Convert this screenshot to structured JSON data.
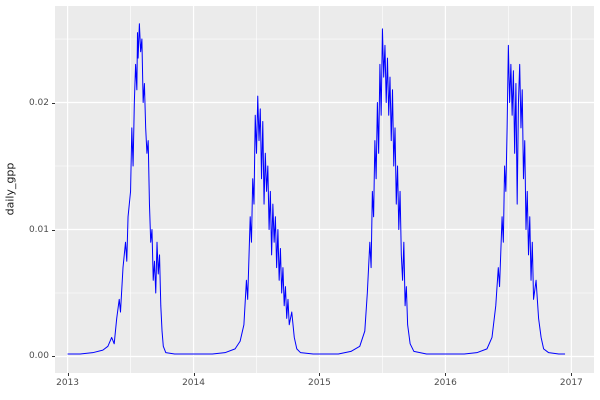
{
  "chart_data": {
    "type": "line",
    "title": "",
    "xlabel": "",
    "ylabel": "daily_gpp",
    "legend": "none",
    "panel_bg": "#EBEBEB",
    "grid": "white major and minor gridlines on gray panel (ggplot2 theme_grey)",
    "line_color": "#0000FF",
    "xlim": [
      2012.9,
      2017.18
    ],
    "ylim": [
      -0.0013,
      0.0276
    ],
    "x_ticks": [
      2013,
      2014,
      2015,
      2016,
      2017
    ],
    "x_tick_labels": [
      "2013",
      "2014",
      "2015",
      "2016",
      "2017"
    ],
    "x_minor_ticks": [
      2013.5,
      2014.5,
      2015.5,
      2016.5,
      2017
    ],
    "y_ticks": [
      0.0,
      0.01,
      0.02
    ],
    "y_tick_labels": [
      "0.00",
      "0.01",
      "0.02"
    ],
    "y_minor_ticks": [
      0.005,
      0.015,
      0.025
    ],
    "series": [
      {
        "name": "daily_gpp",
        "points": [
          [
            2013.0,
            0.0002
          ],
          [
            2013.1,
            0.0002
          ],
          [
            2013.2,
            0.0003
          ],
          [
            2013.28,
            0.0005
          ],
          [
            2013.32,
            0.0008
          ],
          [
            2013.35,
            0.0015
          ],
          [
            2013.37,
            0.001
          ],
          [
            2013.39,
            0.003
          ],
          [
            2013.41,
            0.0045
          ],
          [
            2013.42,
            0.0035
          ],
          [
            2013.44,
            0.007
          ],
          [
            2013.46,
            0.009
          ],
          [
            2013.47,
            0.0075
          ],
          [
            2013.48,
            0.011
          ],
          [
            2013.5,
            0.013
          ],
          [
            2013.51,
            0.018
          ],
          [
            2013.52,
            0.015
          ],
          [
            2013.53,
            0.02
          ],
          [
            2013.54,
            0.023
          ],
          [
            2013.55,
            0.021
          ],
          [
            2013.555,
            0.0255
          ],
          [
            2013.56,
            0.0235
          ],
          [
            2013.57,
            0.0262
          ],
          [
            2013.58,
            0.024
          ],
          [
            2013.59,
            0.025
          ],
          [
            2013.6,
            0.02
          ],
          [
            2013.61,
            0.0215
          ],
          [
            2013.62,
            0.018
          ],
          [
            2013.63,
            0.016
          ],
          [
            2013.64,
            0.017
          ],
          [
            2013.65,
            0.012
          ],
          [
            2013.66,
            0.009
          ],
          [
            2013.67,
            0.01
          ],
          [
            2013.68,
            0.006
          ],
          [
            2013.69,
            0.0075
          ],
          [
            2013.7,
            0.005
          ],
          [
            2013.71,
            0.009
          ],
          [
            2013.72,
            0.0065
          ],
          [
            2013.73,
            0.008
          ],
          [
            2013.74,
            0.004
          ],
          [
            2013.75,
            0.002
          ],
          [
            2013.76,
            0.0008
          ],
          [
            2013.78,
            0.0003
          ],
          [
            2013.85,
            0.0002
          ],
          [
            2013.95,
            0.0002
          ],
          [
            2014.05,
            0.0002
          ],
          [
            2014.15,
            0.0002
          ],
          [
            2014.25,
            0.0003
          ],
          [
            2014.33,
            0.0006
          ],
          [
            2014.37,
            0.0012
          ],
          [
            2014.4,
            0.0025
          ],
          [
            2014.42,
            0.006
          ],
          [
            2014.43,
            0.0045
          ],
          [
            2014.45,
            0.011
          ],
          [
            2014.46,
            0.009
          ],
          [
            2014.47,
            0.014
          ],
          [
            2014.48,
            0.012
          ],
          [
            2014.49,
            0.019
          ],
          [
            2014.5,
            0.016
          ],
          [
            2014.51,
            0.0205
          ],
          [
            2014.52,
            0.017
          ],
          [
            2014.53,
            0.0195
          ],
          [
            2014.54,
            0.014
          ],
          [
            2014.55,
            0.0185
          ],
          [
            2014.56,
            0.012
          ],
          [
            2014.57,
            0.016
          ],
          [
            2014.58,
            0.013
          ],
          [
            2014.59,
            0.015
          ],
          [
            2014.6,
            0.01
          ],
          [
            2014.61,
            0.013
          ],
          [
            2014.62,
            0.008
          ],
          [
            2014.63,
            0.012
          ],
          [
            2014.64,
            0.009
          ],
          [
            2014.65,
            0.011
          ],
          [
            2014.66,
            0.007
          ],
          [
            2014.67,
            0.01
          ],
          [
            2014.68,
            0.006
          ],
          [
            2014.69,
            0.0085
          ],
          [
            2014.7,
            0.005
          ],
          [
            2014.71,
            0.007
          ],
          [
            2014.72,
            0.004
          ],
          [
            2014.73,
            0.0055
          ],
          [
            2014.74,
            0.003
          ],
          [
            2014.75,
            0.0045
          ],
          [
            2014.76,
            0.0025
          ],
          [
            2014.78,
            0.0035
          ],
          [
            2014.8,
            0.0015
          ],
          [
            2014.82,
            0.0006
          ],
          [
            2014.85,
            0.0003
          ],
          [
            2014.95,
            0.0002
          ],
          [
            2015.05,
            0.0002
          ],
          [
            2015.15,
            0.0002
          ],
          [
            2015.25,
            0.0004
          ],
          [
            2015.32,
            0.0008
          ],
          [
            2015.36,
            0.002
          ],
          [
            2015.38,
            0.005
          ],
          [
            2015.4,
            0.009
          ],
          [
            2015.41,
            0.007
          ],
          [
            2015.42,
            0.013
          ],
          [
            2015.43,
            0.011
          ],
          [
            2015.44,
            0.017
          ],
          [
            2015.45,
            0.014
          ],
          [
            2015.46,
            0.02
          ],
          [
            2015.47,
            0.016
          ],
          [
            2015.48,
            0.023
          ],
          [
            2015.49,
            0.019
          ],
          [
            2015.5,
            0.0258
          ],
          [
            2015.51,
            0.022
          ],
          [
            2015.52,
            0.0245
          ],
          [
            2015.53,
            0.02
          ],
          [
            2015.54,
            0.0235
          ],
          [
            2015.55,
            0.019
          ],
          [
            2015.56,
            0.022
          ],
          [
            2015.57,
            0.017
          ],
          [
            2015.58,
            0.021
          ],
          [
            2015.59,
            0.015
          ],
          [
            2015.6,
            0.018
          ],
          [
            2015.61,
            0.012
          ],
          [
            2015.62,
            0.015
          ],
          [
            2015.63,
            0.01
          ],
          [
            2015.64,
            0.013
          ],
          [
            2015.65,
            0.008
          ],
          [
            2015.66,
            0.006
          ],
          [
            2015.67,
            0.009
          ],
          [
            2015.68,
            0.004
          ],
          [
            2015.69,
            0.0055
          ],
          [
            2015.7,
            0.0025
          ],
          [
            2015.72,
            0.001
          ],
          [
            2015.75,
            0.0004
          ],
          [
            2015.85,
            0.0002
          ],
          [
            2015.95,
            0.0002
          ],
          [
            2016.05,
            0.0002
          ],
          [
            2016.15,
            0.0002
          ],
          [
            2016.25,
            0.0003
          ],
          [
            2016.33,
            0.0006
          ],
          [
            2016.37,
            0.0015
          ],
          [
            2016.4,
            0.004
          ],
          [
            2016.42,
            0.007
          ],
          [
            2016.43,
            0.0055
          ],
          [
            2016.45,
            0.011
          ],
          [
            2016.46,
            0.009
          ],
          [
            2016.47,
            0.015
          ],
          [
            2016.48,
            0.013
          ],
          [
            2016.49,
            0.018
          ],
          [
            2016.5,
            0.0245
          ],
          [
            2016.51,
            0.02
          ],
          [
            2016.52,
            0.023
          ],
          [
            2016.53,
            0.019
          ],
          [
            2016.54,
            0.0225
          ],
          [
            2016.55,
            0.016
          ],
          [
            2016.56,
            0.0215
          ],
          [
            2016.57,
            0.012
          ],
          [
            2016.58,
            0.02
          ],
          [
            2016.59,
            0.023
          ],
          [
            2016.6,
            0.018
          ],
          [
            2016.61,
            0.021
          ],
          [
            2016.62,
            0.014
          ],
          [
            2016.63,
            0.017
          ],
          [
            2016.64,
            0.01
          ],
          [
            2016.65,
            0.013
          ],
          [
            2016.66,
            0.008
          ],
          [
            2016.67,
            0.011
          ],
          [
            2016.68,
            0.006
          ],
          [
            2016.69,
            0.009
          ],
          [
            2016.7,
            0.0045
          ],
          [
            2016.72,
            0.006
          ],
          [
            2016.74,
            0.003
          ],
          [
            2016.76,
            0.0015
          ],
          [
            2016.78,
            0.0006
          ],
          [
            2016.82,
            0.0003
          ],
          [
            2016.9,
            0.0002
          ],
          [
            2016.95,
            0.0002
          ]
        ]
      }
    ]
  }
}
